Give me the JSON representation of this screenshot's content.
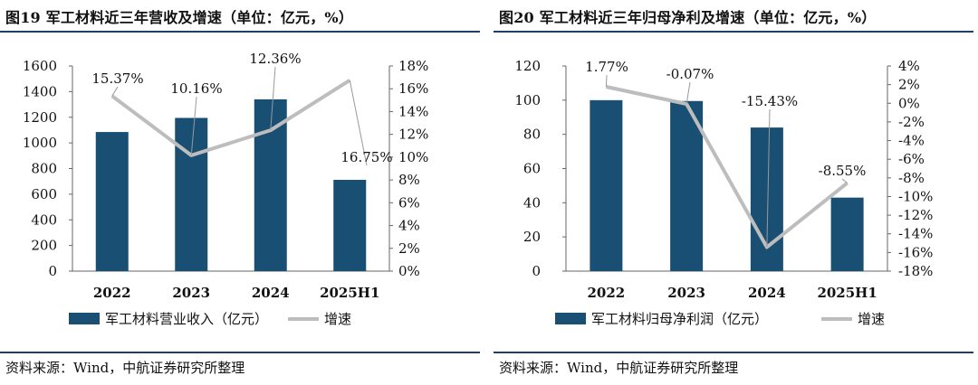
{
  "colors": {
    "bar": "#1a4f74",
    "line": "#bdbdbd",
    "rule": "#1f3f66",
    "leader": "#999999"
  },
  "chart_data": [
    {
      "type": "bar+line",
      "title": "图19  军工材料近三年营收及增速（单位：亿元，%）",
      "categories": [
        "2022",
        "2023",
        "2024",
        "2025H1"
      ],
      "series": [
        {
          "name": "军工材料营业收入（亿元）",
          "type": "bar",
          "axis": "left",
          "values": [
            1085,
            1195,
            1340,
            712
          ]
        },
        {
          "name": "增速",
          "type": "line",
          "axis": "right",
          "values": [
            15.37,
            10.16,
            12.36,
            16.75
          ]
        }
      ],
      "data_labels": [
        "15.37%",
        "10.16%",
        "12.36%",
        "16.75%"
      ],
      "y_left": {
        "min": 0,
        "max": 1600,
        "step": 200,
        "ticks": [
          "0",
          "200",
          "400",
          "600",
          "800",
          "1000",
          "1200",
          "1400",
          "1600"
        ]
      },
      "y_right": {
        "min": 0,
        "max": 18,
        "step": 2,
        "ticks": [
          "0%",
          "2%",
          "4%",
          "6%",
          "8%",
          "10%",
          "12%",
          "14%",
          "16%",
          "18%"
        ]
      },
      "legend": {
        "bar": "军工材料营业收入（亿元）",
        "line": "增速",
        "position": "bottom"
      },
      "source": "资料来源：Wind，中航证券研究所整理"
    },
    {
      "type": "bar+line",
      "title": "图20  军工材料近三年归母净利及增速（单位：亿元，%）",
      "categories": [
        "2022",
        "2023",
        "2024",
        "2025H1"
      ],
      "series": [
        {
          "name": "军工材料归母净利润（亿元）",
          "type": "bar",
          "axis": "left",
          "values": [
            100,
            99.5,
            84,
            43
          ]
        },
        {
          "name": "增速",
          "type": "line",
          "axis": "right",
          "values": [
            1.77,
            -0.07,
            -15.43,
            -8.55
          ]
        }
      ],
      "data_labels": [
        "1.77%",
        "-0.07%",
        "-15.43%",
        "-8.55%"
      ],
      "y_left": {
        "min": 0,
        "max": 120,
        "step": 20,
        "ticks": [
          "0",
          "20",
          "40",
          "60",
          "80",
          "100",
          "120"
        ]
      },
      "y_right": {
        "min": -18,
        "max": 4,
        "step": 2,
        "ticks": [
          "-18%",
          "-16%",
          "-14%",
          "-12%",
          "-10%",
          "-8%",
          "-6%",
          "-4%",
          "-2%",
          "0%",
          "2%",
          "4%"
        ]
      },
      "legend": {
        "bar": "军工材料归母净利润（亿元）",
        "line": "增速",
        "position": "bottom"
      },
      "source": "资料来源：Wind，中航证券研究所整理"
    }
  ]
}
